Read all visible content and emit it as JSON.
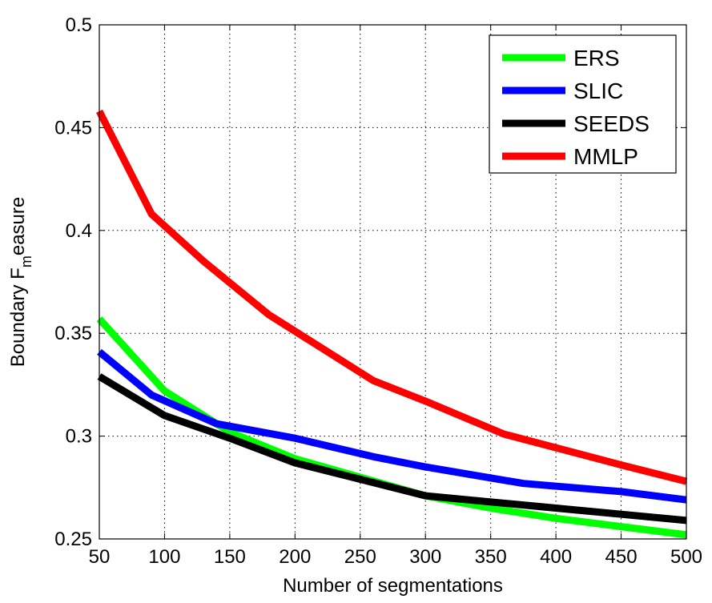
{
  "chart_data": {
    "type": "line",
    "xlabel": "Number of segmentations",
    "ylabel": {
      "pre": "Boundary F",
      "sub": "m",
      "post": "easure"
    },
    "xlim": [
      50,
      500
    ],
    "ylim": [
      0.25,
      0.5
    ],
    "xticks": [
      50,
      100,
      150,
      200,
      250,
      300,
      350,
      400,
      450,
      500
    ],
    "yticks": [
      0.25,
      0.3,
      0.35,
      0.4,
      0.45,
      0.5
    ],
    "xtick_labels": [
      "50",
      "100",
      "150",
      "200",
      "250",
      "300",
      "350",
      "400",
      "450",
      "500"
    ],
    "ytick_labels": [
      "0.25",
      "0.3",
      "0.35",
      "0.4",
      "0.45",
      "0.5"
    ],
    "grid": true,
    "legend_position": "top-right",
    "series": [
      {
        "name": "ERS",
        "color": "#00ff00",
        "x": [
          50,
          100,
          150,
          200,
          250,
          300,
          350,
          400,
          450,
          500
        ],
        "y": [
          0.357,
          0.322,
          0.302,
          0.289,
          0.28,
          0.271,
          0.265,
          0.26,
          0.256,
          0.252
        ]
      },
      {
        "name": "SLIC",
        "color": "#0000ff",
        "x": [
          50,
          90,
          140,
          200,
          260,
          300,
          375,
          450,
          500
        ],
        "y": [
          0.341,
          0.32,
          0.306,
          0.299,
          0.29,
          0.285,
          0.277,
          0.273,
          0.269
        ]
      },
      {
        "name": "SEEDS",
        "color": "#000000",
        "x": [
          50,
          100,
          150,
          200,
          250,
          300,
          350,
          400,
          450,
          500
        ],
        "y": [
          0.329,
          0.31,
          0.299,
          0.287,
          0.279,
          0.271,
          0.268,
          0.265,
          0.262,
          0.259
        ]
      },
      {
        "name": "MMLP",
        "color": "#ff0000",
        "x": [
          50,
          90,
          130,
          180,
          260,
          300,
          360,
          450,
          500
        ],
        "y": [
          0.458,
          0.408,
          0.385,
          0.359,
          0.327,
          0.317,
          0.301,
          0.286,
          0.278
        ]
      }
    ]
  }
}
